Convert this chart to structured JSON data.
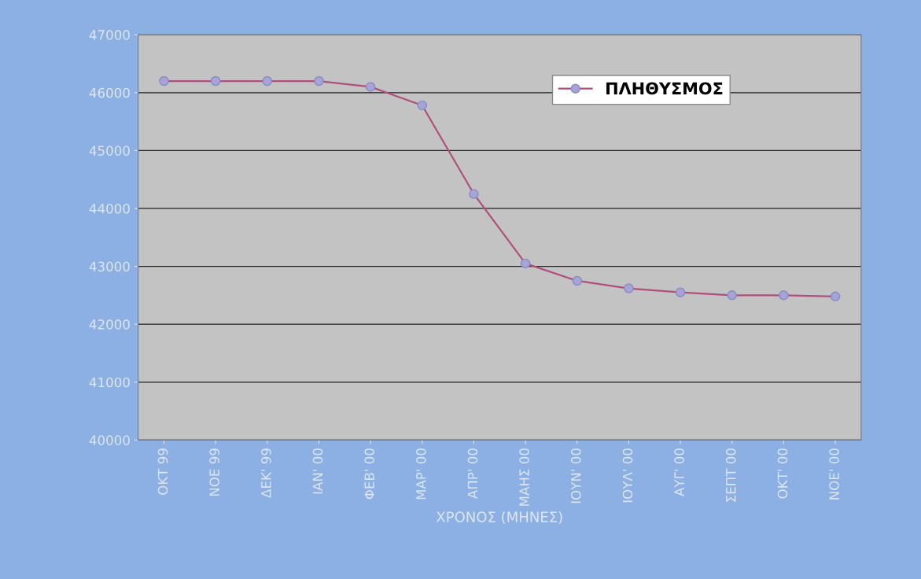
{
  "chart_data": {
    "type": "line",
    "xlabel": "ΧΡΟΝΟΣ (ΜΗΝΕΣ)",
    "categories": [
      "ΟΚΤ 99",
      "ΝΟΕ 99",
      "ΔΕΚ' 99",
      "ΙΑΝ' 00",
      "ΦΕΒ' 00",
      "ΜΑΡ' 00",
      "ΑΠΡ' 00",
      "ΜΑΗΣ 00",
      "ΙΟΥΝ' 00",
      "ΙΟΥΛ' 00",
      "ΑΥΓ' 00",
      "ΣΕΠΤ 00",
      "ΟΚΤ' 00",
      "ΝΟΕ' 00"
    ],
    "series": [
      {
        "name": "ΠΛΗΘΥΣΜΟΣ",
        "color": "#b0507a",
        "values": [
          46200,
          46200,
          46200,
          46200,
          46100,
          45780,
          44250,
          43050,
          42750,
          42620,
          42550,
          42500,
          42500,
          42480
        ]
      }
    ],
    "ylim": [
      40000,
      47000
    ],
    "yticks": [
      40000,
      41000,
      42000,
      43000,
      44000,
      45000,
      46000,
      47000
    ],
    "grid": "y",
    "legend": "top right",
    "marker": "circle",
    "line_style": "solid"
  }
}
